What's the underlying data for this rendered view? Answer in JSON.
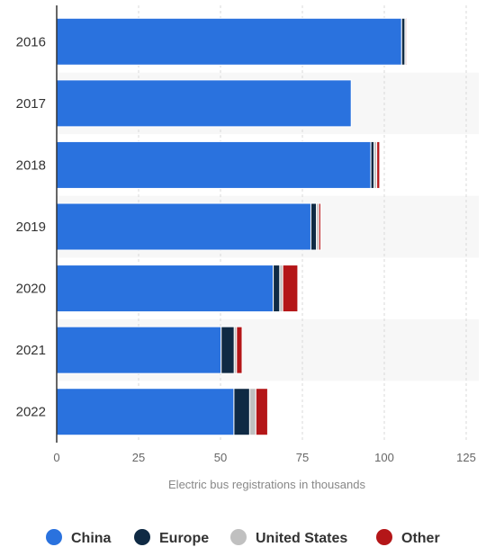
{
  "chart_data": {
    "type": "bar",
    "orientation": "horizontal",
    "stacked": true,
    "categories": [
      "2016",
      "2017",
      "2018",
      "2019",
      "2020",
      "2021",
      "2022"
    ],
    "series": [
      {
        "name": "China",
        "color": "#2a72de",
        "values": [
          105.3,
          89.9,
          95.9,
          77.6,
          66.1,
          50.2,
          54.1
        ]
      },
      {
        "name": "Europe",
        "color": "#0f2a44",
        "values": [
          1.0,
          0,
          1.0,
          1.7,
          2.0,
          4.0,
          4.8
        ]
      },
      {
        "name": "United States",
        "color": "#c0c0c0",
        "values": [
          0.4,
          0,
          0.8,
          0.7,
          0.9,
          0.7,
          1.9
        ]
      },
      {
        "name": "Other",
        "color": "#b41618",
        "values": [
          0.3,
          0,
          0.9,
          0.6,
          4.6,
          1.7,
          3.6
        ]
      }
    ],
    "xlabel": "Electric bus registrations in thousands",
    "xlim": [
      0,
      125
    ],
    "xticks": [
      0,
      25,
      50,
      75,
      100,
      125
    ],
    "grid": true,
    "legend": "bottom"
  }
}
